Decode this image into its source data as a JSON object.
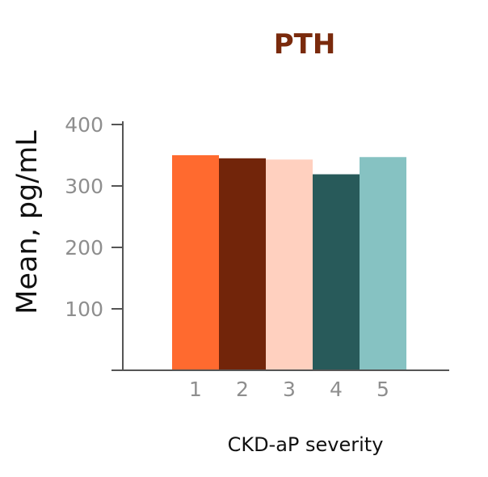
{
  "chart_data": {
    "type": "bar",
    "title": "PTH",
    "xlabel": "CKD-aP severity",
    "ylabel": "Mean, pg/mL",
    "categories": [
      "1",
      "2",
      "3",
      "4",
      "5"
    ],
    "values": [
      350,
      345,
      343,
      319,
      347
    ],
    "ylim": [
      0,
      400
    ],
    "yticks": [
      100,
      200,
      300,
      400
    ],
    "ytick_labels": [
      "100",
      "200",
      "300",
      "400"
    ],
    "grid": false,
    "legend": "none"
  },
  "colors": {
    "title": "#7a2a0c",
    "axis": "#555555",
    "bars": [
      "#ff6a2f",
      "#72250a",
      "#ffd0bf",
      "#285a5a",
      "#86c2c2"
    ]
  }
}
